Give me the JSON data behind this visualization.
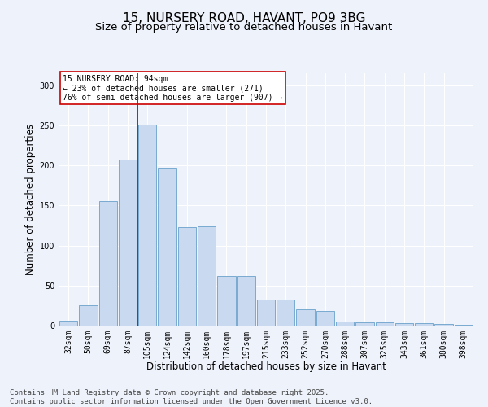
{
  "title": "15, NURSERY ROAD, HAVANT, PO9 3BG",
  "subtitle": "Size of property relative to detached houses in Havant",
  "xlabel": "Distribution of detached houses by size in Havant",
  "ylabel": "Number of detached properties",
  "categories": [
    "32sqm",
    "50sqm",
    "69sqm",
    "87sqm",
    "105sqm",
    "124sqm",
    "142sqm",
    "160sqm",
    "178sqm",
    "197sqm",
    "215sqm",
    "233sqm",
    "252sqm",
    "270sqm",
    "288sqm",
    "307sqm",
    "325sqm",
    "343sqm",
    "361sqm",
    "380sqm",
    "398sqm"
  ],
  "values": [
    6,
    25,
    155,
    207,
    251,
    196,
    123,
    124,
    62,
    62,
    33,
    33,
    20,
    18,
    5,
    4,
    4,
    3,
    3,
    2,
    1
  ],
  "bar_color": "#c8d9f0",
  "bar_edge_color": "#7aaad0",
  "red_line_x": 3.5,
  "red_line_color": "#cc0000",
  "annotation_text": "15 NURSERY ROAD: 94sqm\n← 23% of detached houses are smaller (271)\n76% of semi-detached houses are larger (907) →",
  "annotation_box_color": "#ffffff",
  "annotation_box_edge": "#cc0000",
  "footer_text": "Contains HM Land Registry data © Crown copyright and database right 2025.\nContains public sector information licensed under the Open Government Licence v3.0.",
  "ylim": [
    0,
    315
  ],
  "yticks": [
    0,
    50,
    100,
    150,
    200,
    250,
    300
  ],
  "background_color": "#eef2fb",
  "grid_color": "#ffffff",
  "title_fontsize": 11,
  "subtitle_fontsize": 9.5,
  "axis_label_fontsize": 8.5,
  "tick_fontsize": 7,
  "footer_fontsize": 6.5,
  "annotation_fontsize": 7
}
